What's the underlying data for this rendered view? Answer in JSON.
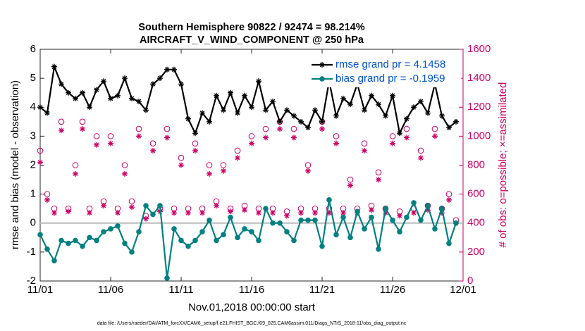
{
  "chart_data": {
    "type": "line",
    "title": "Southern Hemisphere 90822 / 92474 = 98.214%",
    "subtitle": "AIRCRAFT_V_WIND_COMPONENT @ 250 hPa",
    "xlabel": "Nov.01,2018 00:00:00 start",
    "ylabel": "rmse and bias (model - observation)",
    "y2label": "# of obs: o=possible; ×=assimilated",
    "footnote": "data file: /Users/raeder/DAI/ATM_forcXX/CAM6_setup/f.e21.FHIST_BGC.f09_025.CAM6assim.011/Diags_NTrS_2018-11/obs_diag_output.nc",
    "xlim": [
      0,
      30
    ],
    "xticks": [
      {
        "value": 0,
        "label": "11/01"
      },
      {
        "value": 5,
        "label": "11/06"
      },
      {
        "value": 10,
        "label": "11/11"
      },
      {
        "value": 15,
        "label": "11/16"
      },
      {
        "value": 20,
        "label": "11/21"
      },
      {
        "value": 25,
        "label": "11/26"
      },
      {
        "value": 30,
        "label": "12/01"
      }
    ],
    "ylim": [
      -2,
      6
    ],
    "yticks": [
      -2,
      -1,
      0,
      1,
      2,
      3,
      4,
      5,
      6
    ],
    "y2lim": [
      0,
      1600
    ],
    "y2ticks": [
      0,
      200,
      400,
      600,
      800,
      1000,
      1200,
      1400,
      1600
    ],
    "reference_line": 0,
    "legend": "upper right",
    "x": [
      0,
      0.5,
      1,
      1.5,
      2,
      2.5,
      3,
      3.5,
      4,
      4.5,
      5,
      5.5,
      6,
      6.5,
      7,
      7.5,
      8,
      8.5,
      9,
      9.5,
      10,
      10.5,
      11,
      11.5,
      12,
      12.5,
      13,
      13.5,
      14,
      14.5,
      15,
      15.5,
      16,
      16.5,
      17,
      17.5,
      18,
      18.5,
      19,
      19.5,
      20,
      20.5,
      21,
      21.5,
      22,
      22.5,
      23,
      23.5,
      24,
      24.5,
      25,
      25.5,
      26,
      26.5,
      27,
      27.5,
      28,
      28.5,
      29,
      29.5
    ],
    "series": [
      {
        "name": "rmse grand pr = 4.1458",
        "color": "#000000",
        "marker": "asterisk",
        "line": true,
        "values": [
          4.0,
          3.8,
          5.4,
          4.8,
          4.5,
          4.3,
          4.5,
          4.0,
          4.6,
          4.9,
          4.3,
          4.4,
          5.0,
          4.3,
          4.2,
          3.9,
          4.8,
          5.0,
          5.3,
          5.3,
          4.8,
          3.6,
          3.1,
          3.8,
          3.5,
          4.4,
          3.9,
          4.5,
          3.8,
          4.4,
          4.0,
          4.9,
          3.9,
          4.2,
          3.5,
          3.9,
          3.7,
          3.5,
          3.3,
          3.9,
          3.5,
          4.9,
          3.7,
          4.3,
          4.1,
          4.8,
          3.9,
          4.4,
          4.1,
          3.7,
          4.4,
          3.1,
          3.6,
          4.0,
          4.2,
          3.8,
          4.8,
          3.7,
          3.3,
          3.5
        ]
      },
      {
        "name": "bias grand pr = -0.1959",
        "color": "#008080",
        "marker": "dot",
        "line": true,
        "values": [
          -0.4,
          -0.9,
          -1.3,
          -0.6,
          -0.7,
          -0.6,
          -0.8,
          -0.5,
          -0.6,
          -0.3,
          -0.2,
          -0.1,
          -0.7,
          -1.0,
          -0.3,
          0.6,
          0.3,
          0.6,
          -1.9,
          -0.2,
          -0.6,
          -0.8,
          -0.6,
          -0.3,
          0.1,
          -0.6,
          -0.4,
          0.2,
          -0.5,
          -0.2,
          -0.3,
          -0.6,
          0.5,
          0.0,
          0.0,
          -0.3,
          -0.6,
          0.1,
          0.1,
          0.1,
          -0.8,
          0.8,
          -0.4,
          0.2,
          -0.5,
          0.4,
          -0.2,
          0.2,
          -0.9,
          0.5,
          0.1,
          -0.3,
          0.2,
          0.7,
          0.1,
          0.6,
          -0.2,
          0.5,
          -0.7,
          0.0
        ]
      },
      {
        "color": "#cc0066",
        "marker": "circle",
        "line": false,
        "axis": "y2",
        "values": [
          900,
          600,
          500,
          1100,
          500,
          800,
          1100,
          500,
          1000,
          550,
          1000,
          500,
          800,
          550,
          1050,
          450,
          950,
          500,
          1050,
          500,
          850,
          500,
          950,
          500,
          800,
          550,
          800,
          500,
          900,
          520,
          1000,
          500,
          1050,
          500,
          1100,
          480,
          1050,
          500,
          800,
          500,
          1100,
          500,
          1000,
          500,
          700,
          500,
          950,
          520,
          750,
          500,
          1000,
          480,
          1050,
          500,
          900,
          520,
          1050,
          500,
          600,
          420
        ]
      },
      {
        "color": "#cc0066",
        "marker": "asterisk",
        "line": false,
        "axis": "y2",
        "values": [
          820,
          560,
          470,
          1040,
          480,
          740,
          1050,
          470,
          940,
          520,
          950,
          470,
          740,
          510,
          1000,
          430,
          900,
          480,
          990,
          470,
          800,
          470,
          900,
          470,
          740,
          520,
          760,
          480,
          850,
          490,
          950,
          470,
          990,
          470,
          1050,
          450,
          990,
          470,
          760,
          470,
          1050,
          470,
          950,
          470,
          660,
          470,
          900,
          490,
          700,
          470,
          950,
          450,
          990,
          470,
          850,
          490,
          1000,
          470,
          560,
          400
        ]
      }
    ]
  }
}
